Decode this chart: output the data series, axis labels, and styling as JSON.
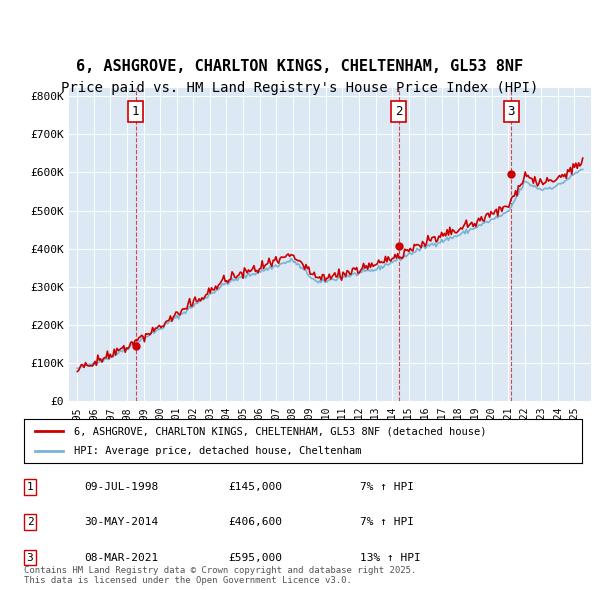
{
  "title_line1": "6, ASHGROVE, CHARLTON KINGS, CHELTENHAM, GL53 8NF",
  "title_line2": "Price paid vs. HM Land Registry's House Price Index (HPI)",
  "title_fontsize": 11,
  "subtitle_fontsize": 10,
  "bg_color": "#dce9f5",
  "plot_bg_color": "#dce9f5",
  "fig_bg_color": "#ffffff",
  "red_color": "#cc0000",
  "blue_color": "#7ab3d4",
  "ylim": [
    0,
    820000
  ],
  "yticks": [
    0,
    100000,
    200000,
    300000,
    400000,
    500000,
    600000,
    700000,
    800000
  ],
  "ytick_labels": [
    "£0",
    "£100K",
    "£200K",
    "£300K",
    "£400K",
    "£500K",
    "£600K",
    "£700K",
    "£800K"
  ],
  "xlim_start": 1994.5,
  "xlim_end": 2026.0,
  "xtick_years": [
    1995,
    1996,
    1997,
    1998,
    1999,
    2000,
    2001,
    2002,
    2003,
    2004,
    2005,
    2006,
    2007,
    2008,
    2009,
    2010,
    2011,
    2012,
    2013,
    2014,
    2015,
    2016,
    2017,
    2018,
    2019,
    2020,
    2021,
    2022,
    2023,
    2024,
    2025
  ],
  "sale_dates": [
    1998.52,
    2014.41,
    2021.18
  ],
  "sale_prices": [
    145000,
    406600,
    595000
  ],
  "sale_labels": [
    "1",
    "2",
    "3"
  ],
  "legend_line1": "6, ASHGROVE, CHARLTON KINGS, CHELTENHAM, GL53 8NF (detached house)",
  "legend_line2": "HPI: Average price, detached house, Cheltenham",
  "table_entries": [
    {
      "num": "1",
      "date": "09-JUL-1998",
      "price": "£145,000",
      "change": "7% ↑ HPI"
    },
    {
      "num": "2",
      "date": "30-MAY-2014",
      "price": "£406,600",
      "change": "7% ↑ HPI"
    },
    {
      "num": "3",
      "date": "08-MAR-2021",
      "price": "£595,000",
      "change": "13% ↑ HPI"
    }
  ],
  "footer_text": "Contains HM Land Registry data © Crown copyright and database right 2025.\nThis data is licensed under the Open Government Licence v3.0."
}
